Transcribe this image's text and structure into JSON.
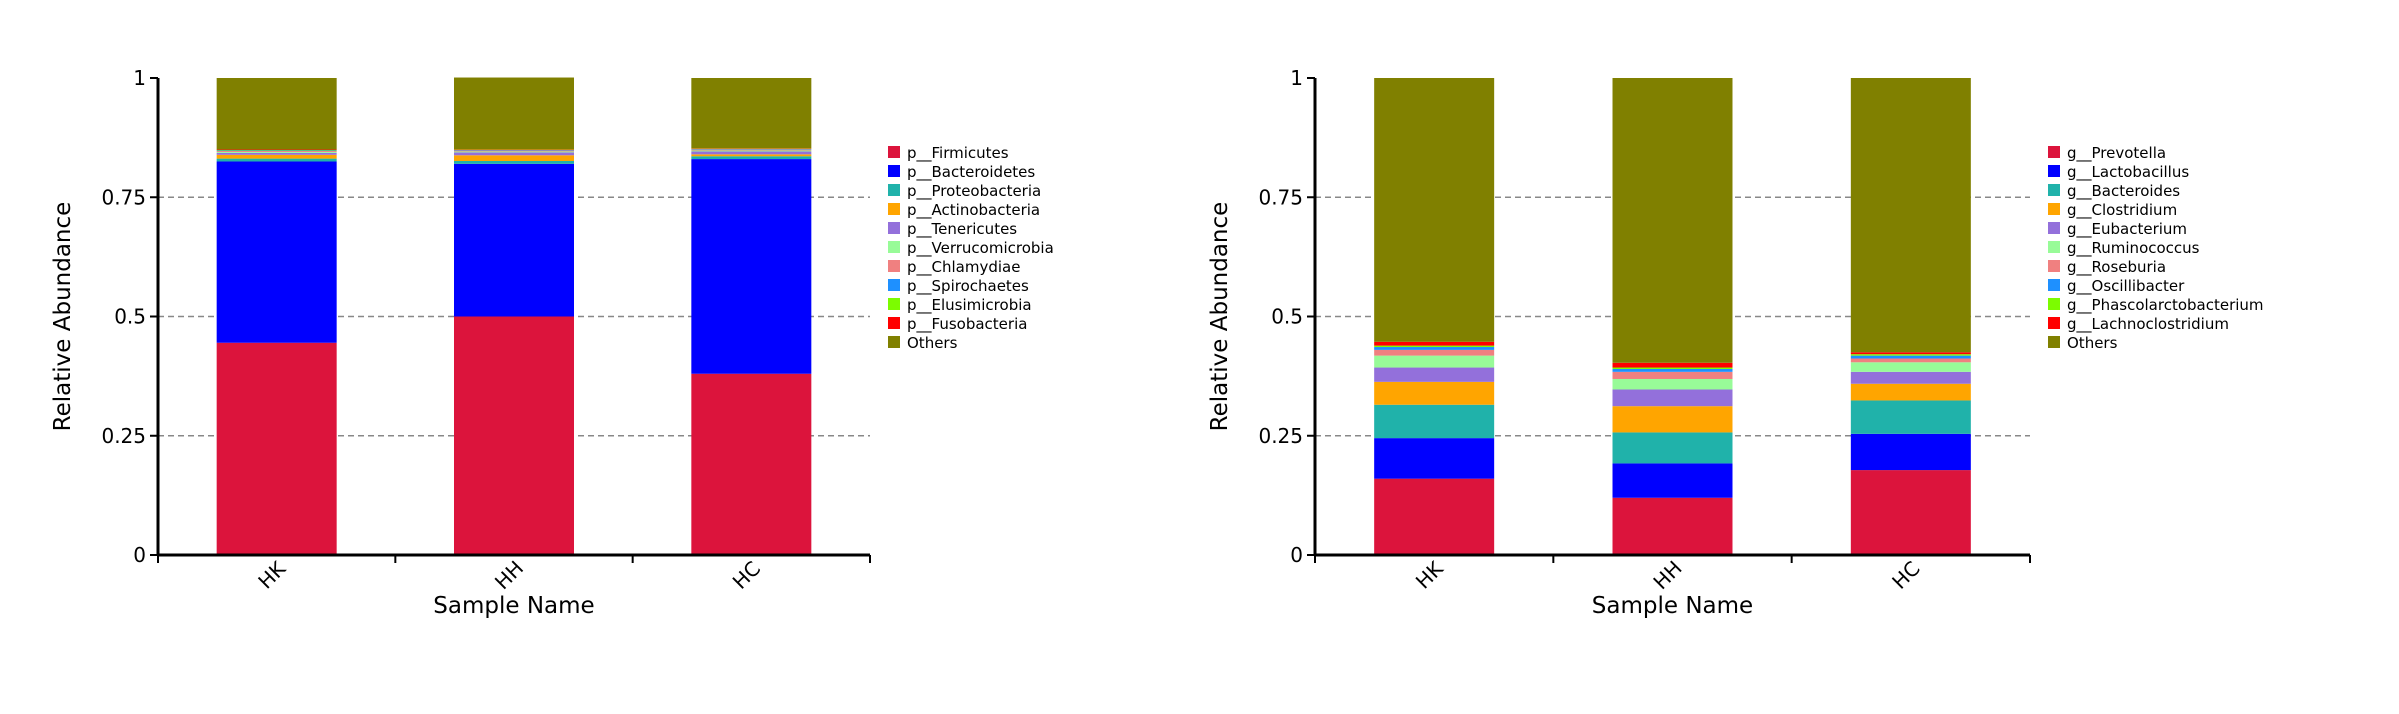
{
  "chart_data": [
    {
      "type": "bar",
      "stacked": true,
      "categories": [
        "HK",
        "HH",
        "HC"
      ],
      "xlabel": "Sample Name",
      "ylabel": "Relative Abundance",
      "ylim": [
        0,
        1
      ],
      "yticks": [
        "0",
        "0.25",
        "0.5",
        "0.75",
        "1"
      ],
      "grid": "dashed horizontal",
      "legend_position": "right",
      "series": [
        {
          "name": "p__Firmicutes",
          "color": "#dc143c",
          "values": [
            0.445,
            0.5,
            0.38
          ]
        },
        {
          "name": "p__Bacteroidetes",
          "color": "#0000ff",
          "values": [
            0.38,
            0.32,
            0.45
          ]
        },
        {
          "name": "p__Proteobacteria",
          "color": "#20b2aa",
          "values": [
            0.006,
            0.006,
            0.006
          ]
        },
        {
          "name": "p__Actinobacteria",
          "color": "#ffa500",
          "values": [
            0.008,
            0.012,
            0.004
          ]
        },
        {
          "name": "p__Tenericutes",
          "color": "#9370db",
          "values": [
            0.004,
            0.006,
            0.006
          ]
        },
        {
          "name": "p__Verrucomicrobia",
          "color": "#98fb98",
          "values": [
            0.002,
            0.002,
            0.002
          ]
        },
        {
          "name": "p__Chlamydiae",
          "color": "#f08080",
          "values": [
            0.002,
            0.002,
            0.002
          ]
        },
        {
          "name": "p__Spirochaetes",
          "color": "#1e90ff",
          "values": [
            0.001,
            0.001,
            0.001
          ]
        },
        {
          "name": "p__Elusimicrobia",
          "color": "#7cfc00",
          "values": [
            0.001,
            0.001,
            0.001
          ]
        },
        {
          "name": "p__Fusobacteria",
          "color": "#ff0000",
          "values": [
            0.001,
            0.001,
            0.001
          ]
        },
        {
          "name": "Others",
          "color": "#808000",
          "values": [
            0.15,
            0.15,
            0.147
          ]
        }
      ]
    },
    {
      "type": "bar",
      "stacked": true,
      "categories": [
        "HK",
        "HH",
        "HC"
      ],
      "xlabel": "Sample Name",
      "ylabel": "Relative Abundance",
      "ylim": [
        0,
        1
      ],
      "yticks": [
        "0",
        "0.25",
        "0.5",
        "0.75",
        "1"
      ],
      "grid": "dashed horizontal",
      "legend_position": "right",
      "series": [
        {
          "name": "g__Prevotella",
          "color": "#dc143c",
          "values": [
            0.16,
            0.12,
            0.178
          ]
        },
        {
          "name": "g__Lactobacillus",
          "color": "#0000ff",
          "values": [
            0.085,
            0.072,
            0.076
          ]
        },
        {
          "name": "g__Bacteroides",
          "color": "#20b2aa",
          "values": [
            0.07,
            0.065,
            0.07
          ]
        },
        {
          "name": "g__Clostridium",
          "color": "#ffa500",
          "values": [
            0.048,
            0.055,
            0.035
          ]
        },
        {
          "name": "g__Eubacterium",
          "color": "#9370db",
          "values": [
            0.03,
            0.035,
            0.025
          ]
        },
        {
          "name": "g__Ruminococcus",
          "color": "#98fb98",
          "values": [
            0.025,
            0.022,
            0.02
          ]
        },
        {
          "name": "g__Roseburia",
          "color": "#f08080",
          "values": [
            0.012,
            0.015,
            0.008
          ]
        },
        {
          "name": "g__Oscillibacter",
          "color": "#1e90ff",
          "values": [
            0.006,
            0.006,
            0.006
          ]
        },
        {
          "name": "g__Phascolarctobacterium",
          "color": "#7cfc00",
          "values": [
            0.003,
            0.003,
            0.003
          ]
        },
        {
          "name": "g__Lachnoclostridium",
          "color": "#ff0000",
          "values": [
            0.008,
            0.01,
            0.004
          ]
        },
        {
          "name": "Others",
          "color": "#808000",
          "values": [
            0.553,
            0.597,
            0.575
          ]
        }
      ]
    }
  ]
}
